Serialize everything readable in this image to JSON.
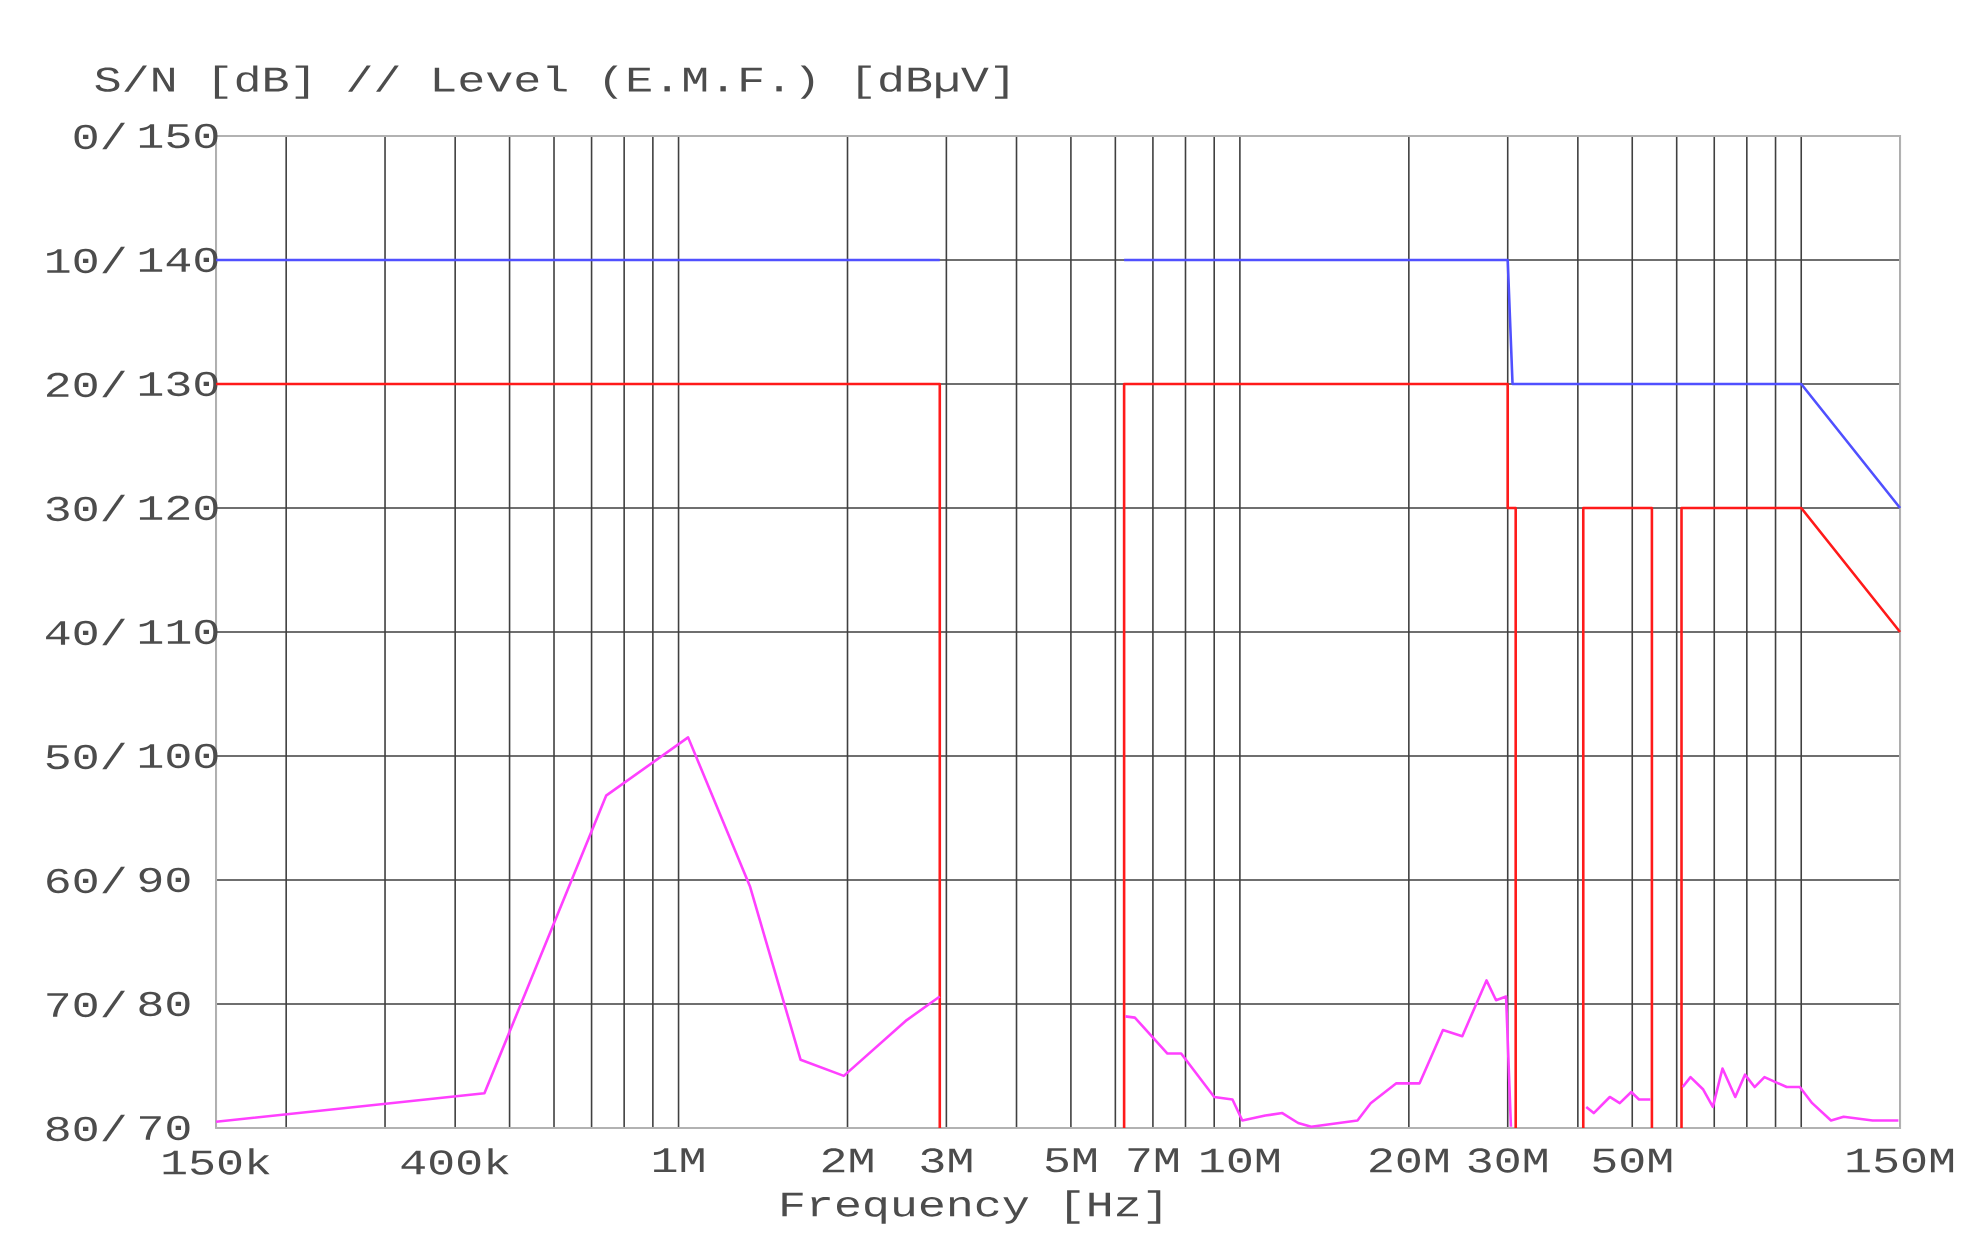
{
  "chart_data": {
    "type": "line",
    "ylabel": "S/N [dB] // Level (E.M.F.) [dBµV]",
    "xlabel": "Frequency [Hz]",
    "log": "x",
    "grid": true,
    "marker": "none",
    "line_style": "solid",
    "xlim": [
      150000,
      150000000
    ],
    "ylim": [
      70,
      150
    ],
    "xticks": [
      {
        "value": 150000,
        "label": "150k"
      },
      {
        "value": 200000,
        "label": null
      },
      {
        "value": 300000,
        "label": null
      },
      {
        "value": 400000,
        "label": "400k"
      },
      {
        "value": 500000,
        "label": null
      },
      {
        "value": 600000,
        "label": null
      },
      {
        "value": 700000,
        "label": null
      },
      {
        "value": 800000,
        "label": null
      },
      {
        "value": 900000,
        "label": null
      },
      {
        "value": 1000000,
        "label": "1M"
      },
      {
        "value": 2000000,
        "label": "2M"
      },
      {
        "value": 3000000,
        "label": "3M"
      },
      {
        "value": 4000000,
        "label": null
      },
      {
        "value": 5000000,
        "label": "5M"
      },
      {
        "value": 6000000,
        "label": null
      },
      {
        "value": 7000000,
        "label": "7M"
      },
      {
        "value": 8000000,
        "label": null
      },
      {
        "value": 9000000,
        "label": null
      },
      {
        "value": 10000000,
        "label": "10M"
      },
      {
        "value": 20000000,
        "label": "20M"
      },
      {
        "value": 30000000,
        "label": "30M"
      },
      {
        "value": 40000000,
        "label": null
      },
      {
        "value": 50000000,
        "label": "50M"
      },
      {
        "value": 60000000,
        "label": null
      },
      {
        "value": 70000000,
        "label": null
      },
      {
        "value": 80000000,
        "label": null
      },
      {
        "value": 90000000,
        "label": null
      },
      {
        "value": 100000000,
        "label": null
      },
      {
        "value": 150000000,
        "label": "150M"
      }
    ],
    "yticks": [
      70,
      80,
      90,
      100,
      110,
      120,
      130,
      140,
      150
    ],
    "y2lim": [
      80,
      0
    ],
    "y2ticks": [
      {
        "value": 80,
        "label": "80/"
      },
      {
        "value": 70,
        "label": "70/"
      },
      {
        "value": 60,
        "label": "60/"
      },
      {
        "value": 50,
        "label": "50/"
      },
      {
        "value": 40,
        "label": "40/"
      },
      {
        "value": 30,
        "label": "30/"
      },
      {
        "value": 20,
        "label": "20/"
      },
      {
        "value": 10,
        "label": "10/"
      },
      {
        "value": 0,
        "label": "0/"
      }
    ],
    "series": [
      {
        "color": "#5050ff",
        "x": [
          150000,
          2920000
        ],
        "values": [
          140,
          140
        ]
      },
      {
        "color": "#5050ff",
        "x": [
          6220000,
          30000000,
          30600000,
          100000000,
          150000000
        ],
        "values": [
          140,
          140,
          130,
          130,
          120
        ]
      },
      {
        "color": "#ff1a1a",
        "x": [
          150000,
          2920000,
          2920000
        ],
        "values": [
          130,
          130,
          70
        ]
      },
      {
        "color": "#ff1a1a",
        "x": [
          6220000,
          6220000,
          30000000,
          30000000,
          31000000,
          31000000
        ],
        "values": [
          70,
          130,
          130,
          120,
          120,
          70
        ]
      },
      {
        "color": "#ff1a1a",
        "x": [
          40900000,
          40900000,
          54200000,
          54200000
        ],
        "values": [
          70,
          120,
          120,
          70
        ]
      },
      {
        "color": "#ff1a1a",
        "x": [
          61200000,
          61200000,
          100000000,
          150000000
        ],
        "values": [
          70,
          120,
          120,
          110
        ]
      },
      {
        "color": "#ff40ff",
        "x": [
          150000,
          451000,
          743000,
          1040000,
          1340000,
          1650000,
          1970000,
          2550000,
          2920000
        ],
        "values": [
          70.5,
          72.8,
          96.8,
          101.5,
          89.5,
          75.5,
          74.2,
          78.7,
          80.6
        ]
      },
      {
        "color": "#ff40ff",
        "x": [
          6250000,
          6500000,
          7430000,
          7860000,
          9000000,
          9700000,
          10100000,
          11100000,
          11900000,
          12700000,
          13400000,
          16200000,
          17100000,
          19000000,
          20900000,
          23000000,
          24900000,
          27500000,
          28600000,
          29800000,
          30400000
        ],
        "values": [
          79.0,
          78.9,
          76.0,
          76.0,
          72.5,
          72.3,
          70.6,
          71.0,
          71.2,
          70.4,
          70.1,
          70.6,
          72.0,
          73.6,
          73.6,
          77.9,
          77.4,
          81.9,
          80.3,
          80.6,
          70.1
        ]
      },
      {
        "color": "#ff40ff",
        "x": [
          41400000,
          42700000,
          45600000,
          47500000,
          49800000,
          51400000,
          53900000
        ],
        "values": [
          71.7,
          71.2,
          72.5,
          72.0,
          72.9,
          72.3,
          72.3
        ]
      },
      {
        "color": "#ff40ff",
        "x": [
          61500000,
          63500000,
          66900000,
          69600000,
          72400000,
          76300000,
          79400000,
          82600000,
          86000000,
          94200000,
          99400000,
          104600000,
          113000000,
          119000000,
          134000000,
          149000000
        ],
        "values": [
          73.3,
          74.1,
          73.1,
          71.7,
          74.8,
          72.5,
          74.3,
          73.3,
          74.1,
          73.3,
          73.3,
          72.0,
          70.6,
          70.9,
          70.6,
          70.6
        ]
      }
    ]
  }
}
